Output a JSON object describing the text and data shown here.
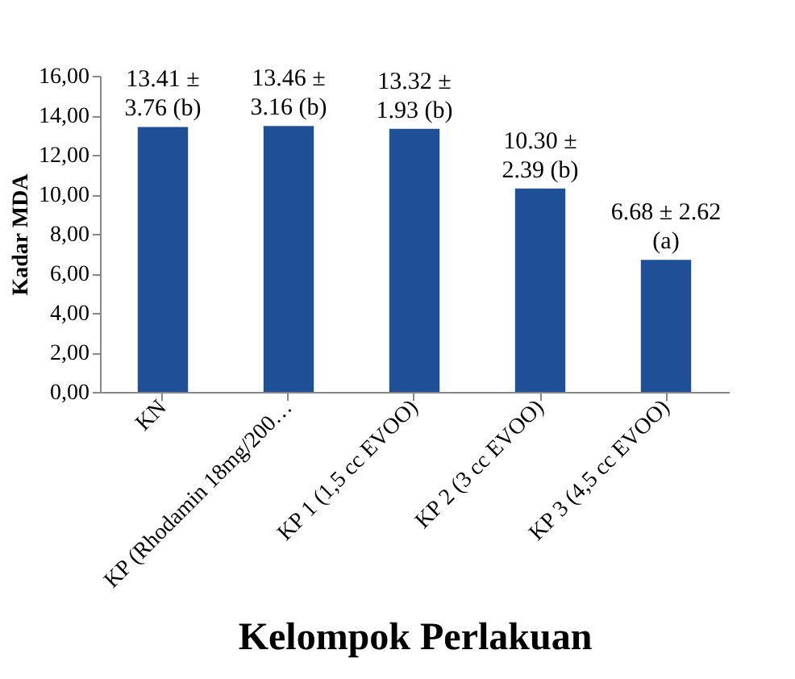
{
  "chart_data": {
    "type": "bar",
    "xlabel": "Kelompok Perlakuan",
    "ylabel": "Kadar MDA",
    "categories": [
      "KN",
      "KP (Rhodamin 18mg/200…",
      "KP 1 (1,5 cc EVOO)",
      "KP 2 (3 cc EVOO)",
      "KP 3 (4,5 cc EVOO)"
    ],
    "values": [
      13.41,
      13.46,
      13.32,
      10.3,
      6.68
    ],
    "value_labels": [
      "13.41 ± 3.76 (b)",
      "13.46 ± 3.16 (b)",
      "13.32 ± 1.93 (b)",
      "10.30 ± 2.39 (b)",
      "6.68 ± 2.62 (a)"
    ],
    "color": "#1f4f96",
    "ylim": [
      0,
      16
    ],
    "yticks": [
      {
        "value": 0,
        "label": "0,00"
      },
      {
        "value": 2,
        "label": "2,00"
      },
      {
        "value": 4,
        "label": "4,00"
      },
      {
        "value": 6,
        "label": "6,00"
      },
      {
        "value": 8,
        "label": "8,00"
      },
      {
        "value": 10,
        "label": "10,00"
      },
      {
        "value": 12,
        "label": "12,00"
      },
      {
        "value": 14,
        "label": "14,00"
      },
      {
        "value": 16,
        "label": "16,00"
      }
    ],
    "grid": false
  }
}
